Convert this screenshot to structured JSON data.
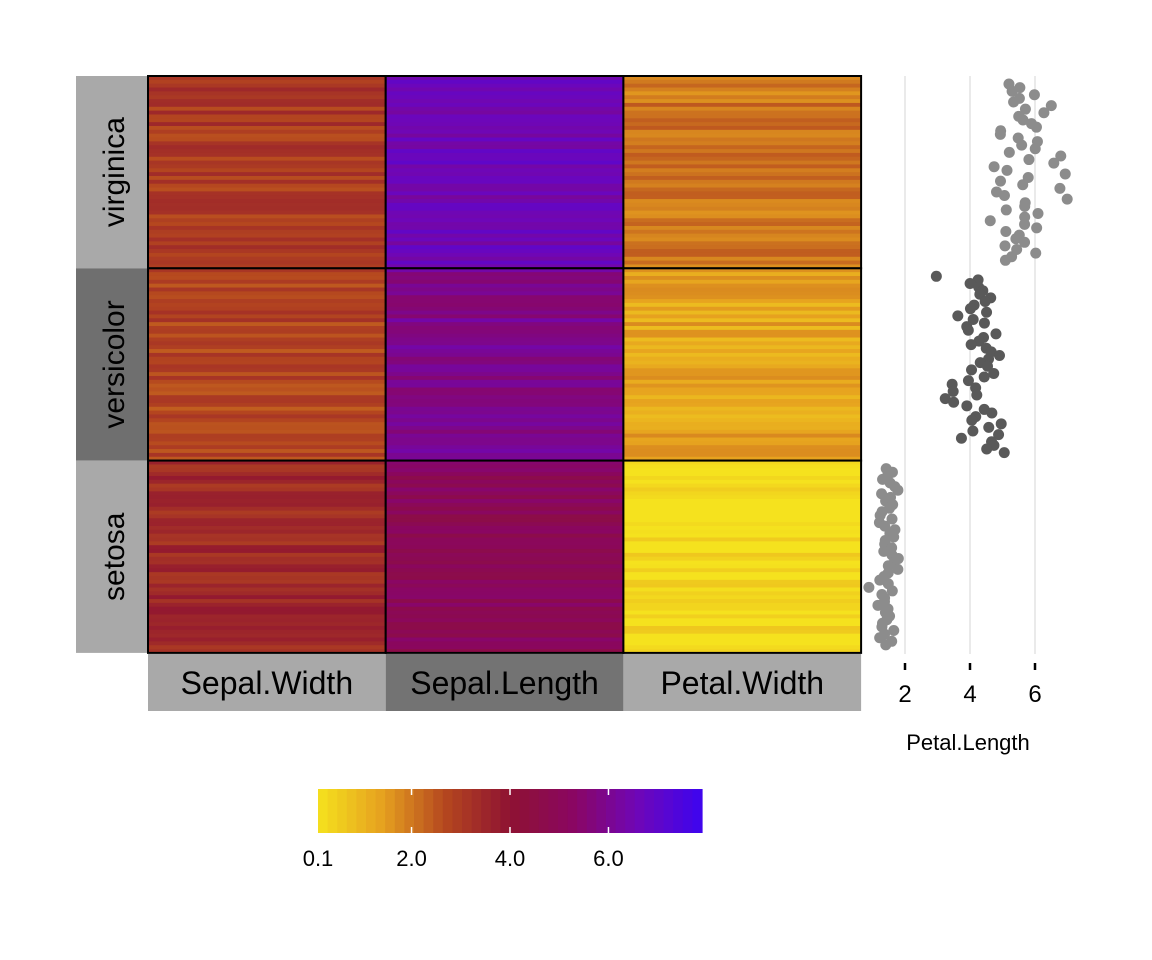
{
  "chart_data": {
    "type": "heatmap",
    "row_groups": [
      "virginica",
      "versicolor",
      "setosa"
    ],
    "row_group_colors": [
      "#a9a9a9",
      "#6f6f6f",
      "#a9a9a9"
    ],
    "columns": [
      "Sepal.Width",
      "Sepal.Length",
      "Petal.Width"
    ],
    "column_colors": [
      "#a9a9a9",
      "#737373",
      "#a9a9a9"
    ],
    "colorbar": {
      "min": 0.1,
      "max": 7.9,
      "tick_values": [
        0.1,
        2.0,
        4.0,
        6.0
      ],
      "tick_labels": [
        "0.1",
        "2.0",
        "4.0",
        "6.0"
      ],
      "palette": [
        "#f5e21e",
        "#e6a11f",
        "#b4461f",
        "#8e1232",
        "#8a0663",
        "#6e06b8",
        "#3d05f0"
      ]
    },
    "group_means": {
      "virginica": [
        3.0,
        6.6,
        2.0
      ],
      "versicolor": [
        2.8,
        5.9,
        1.3
      ],
      "setosa": [
        3.4,
        5.0,
        0.2
      ]
    },
    "side_plot": {
      "type": "scatter",
      "xlabel": "Petal.Length",
      "x_ticks": [
        "2",
        "4",
        "6"
      ],
      "x_tick_values": [
        2,
        4,
        6
      ],
      "xlim": [
        1.0,
        6.9
      ],
      "series": [
        {
          "group": "virginica",
          "color": "#8c8c8c",
          "values": [
            5.1,
            5.6,
            5.3,
            6.1,
            5.5,
            5.4,
            6.4,
            5.8,
            6.3,
            5.5,
            5.6,
            5.8,
            6.0,
            4.9,
            5.0,
            5.6,
            6.1,
            5.7,
            5.9,
            5.2,
            6.7,
            5.7,
            6.6,
            4.8,
            5.1,
            6.9,
            5.9,
            5.0,
            5.6,
            6.7,
            4.8,
            5.1,
            6.9,
            5.7,
            5.7,
            5.1,
            6.0,
            5.6,
            4.5,
            5.8,
            6.1,
            5.1,
            5.6,
            5.5,
            5.8,
            5.0,
            5.4,
            6.0,
            5.2,
            5.1
          ]
        },
        {
          "group": "versicolor",
          "color": "#595959",
          "values": [
            3.0,
            4.2,
            4.1,
            4.3,
            4.5,
            4.4,
            4.7,
            4.5,
            4.2,
            4.1,
            4.6,
            3.7,
            4.1,
            4.4,
            3.9,
            3.9,
            4.7,
            4.4,
            4.3,
            4.0,
            4.5,
            4.7,
            4.9,
            4.5,
            4.4,
            4.6,
            4.0,
            4.8,
            4.4,
            4.0,
            3.5,
            4.2,
            3.6,
            4.3,
            3.3,
            3.5,
            4.0,
            4.5,
            4.7,
            4.2,
            4.0,
            4.9,
            4.6,
            4.1,
            5.0,
            3.8,
            4.6,
            4.8,
            4.5,
            5.1
          ]
        },
        {
          "group": "setosa",
          "color": "#8c8c8c",
          "values": [
            1.4,
            1.5,
            1.5,
            1.4,
            1.5,
            1.6,
            1.9,
            1.4,
            1.5,
            1.3,
            1.6,
            1.5,
            1.4,
            1.3,
            1.5,
            1.2,
            1.4,
            1.6,
            1.5,
            1.7,
            1.4,
            1.3,
            1.5,
            1.3,
            1.5,
            1.7,
            1.6,
            1.6,
            1.9,
            1.6,
            1.4,
            1.3,
            1.5,
            1.0,
            1.6,
            1.2,
            1.4,
            1.3,
            1.1,
            1.5,
            1.4,
            1.5,
            1.5,
            1.4,
            1.3,
            1.6,
            1.4,
            1.2,
            1.6,
            1.5
          ]
        }
      ]
    }
  }
}
